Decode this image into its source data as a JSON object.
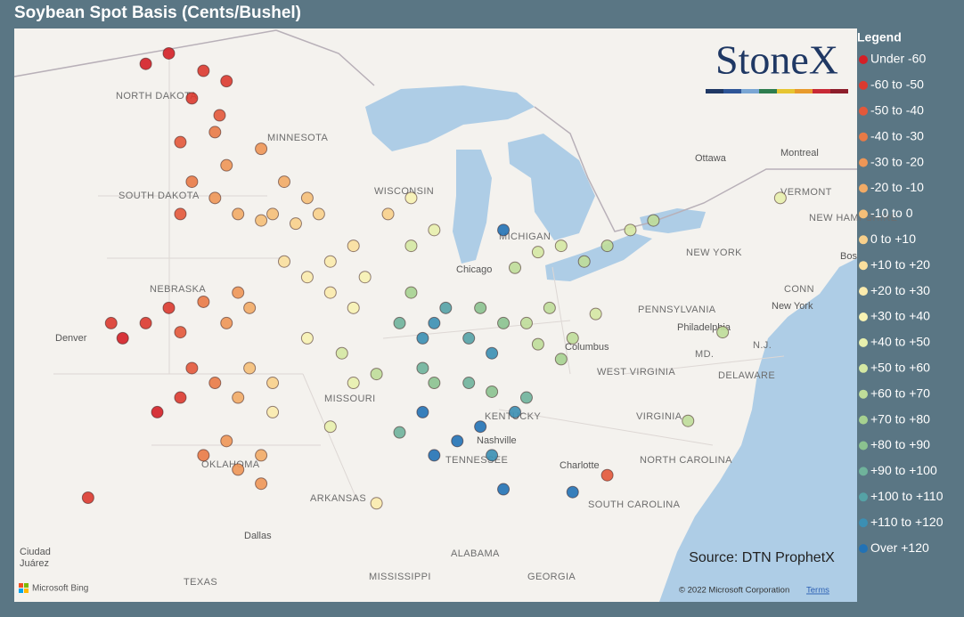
{
  "header": {
    "title": "Soybean Spot Basis (Cents/Bushel)"
  },
  "legend": {
    "title": "Legend",
    "items": [
      {
        "label": "Under -60",
        "from": null,
        "to": -60,
        "color": "#d41f26"
      },
      {
        "label": "-60 to -50",
        "from": -60,
        "to": -50,
        "color": "#db3a2f"
      },
      {
        "label": "-50 to -40",
        "from": -50,
        "to": -40,
        "color": "#e3583a"
      },
      {
        "label": "-40 to -30",
        "from": -40,
        "to": -30,
        "color": "#e97a46"
      },
      {
        "label": "-30 to -20",
        "from": -30,
        "to": -20,
        "color": "#ee9656"
      },
      {
        "label": "-20 to -10",
        "from": -20,
        "to": -10,
        "color": "#f2ab66"
      },
      {
        "label": "-10 to 0",
        "from": -10,
        "to": 0,
        "color": "#f5bf78"
      },
      {
        "label": "0 to +10",
        "from": 0,
        "to": 10,
        "color": "#f8d08b"
      },
      {
        "label": "+10 to +20",
        "from": 10,
        "to": 20,
        "color": "#fadf9d"
      },
      {
        "label": "+20 to +30",
        "from": 20,
        "to": 30,
        "color": "#fbebad"
      },
      {
        "label": "+30 to +40",
        "from": 30,
        "to": 40,
        "color": "#f7f2b3"
      },
      {
        "label": "+40 to +50",
        "from": 40,
        "to": 50,
        "color": "#e8f0ad"
      },
      {
        "label": "+50 to +60",
        "from": 50,
        "to": 60,
        "color": "#d5e8a3"
      },
      {
        "label": "+60 to +70",
        "from": 60,
        "to": 70,
        "color": "#bfdd99"
      },
      {
        "label": "+70 to +80",
        "from": 70,
        "to": 80,
        "color": "#a6d190"
      },
      {
        "label": "+80 to +90",
        "from": 80,
        "to": 90,
        "color": "#8bc28f"
      },
      {
        "label": "+90 to +100",
        "from": 90,
        "to": 100,
        "color": "#6fb39b"
      },
      {
        "label": "+100 to +110",
        "from": 100,
        "to": 110,
        "color": "#55a2a6"
      },
      {
        "label": "+110 to +120",
        "from": 110,
        "to": 120,
        "color": "#3b8fb3"
      },
      {
        "label": "Over +120",
        "from": 120,
        "to": null,
        "color": "#2272b5"
      }
    ]
  },
  "logo": "StoneX",
  "source": "Source: DTN ProphetX",
  "attribution": {
    "brand": "Microsoft Bing",
    "copyright": "© 2022 Microsoft Corporation",
    "terms": "Terms"
  },
  "map_labels": [
    "NORTH DAKOTA",
    "MINNESOTA",
    "SOUTH DAKOTA",
    "WISCONSIN",
    "MICHIGAN",
    "NEBRASKA",
    "Denver",
    "Chicago",
    "MISSOURI",
    "KENTUCKY",
    "TENNESSEE",
    "Nashville",
    "OKLAHOMA",
    "ARKANSAS",
    "Dallas",
    "TEXAS",
    "ALABAMA",
    "MISSISSIPPI",
    "GEORGIA",
    "SOUTH CAROLINA",
    "NORTH CAROLINA",
    "Charlotte",
    "VIRGINIA",
    "WEST VIRGINIA",
    "Columbus",
    "PENNSYLVANIA",
    "NEW YORK",
    "Philadelphia",
    "New York",
    "MD.",
    "DELAWARE",
    "N.J.",
    "CONN",
    "Bos",
    "NEW HAMPSHIRE",
    "VERMONT",
    "Montreal",
    "Ottawa",
    "Ciudad",
    "Juárez"
  ],
  "points": [
    {
      "lon": -101,
      "lat": 48.5,
      "basis": -65
    },
    {
      "lon": -100,
      "lat": 48.8,
      "basis": -62
    },
    {
      "lon": -98.5,
      "lat": 48.3,
      "basis": -58
    },
    {
      "lon": -97.5,
      "lat": 48,
      "basis": -55
    },
    {
      "lon": -99,
      "lat": 47.5,
      "basis": -52
    },
    {
      "lon": -97.8,
      "lat": 47,
      "basis": -45
    },
    {
      "lon": -98,
      "lat": 46.5,
      "basis": -40
    },
    {
      "lon": -99.5,
      "lat": 46.2,
      "basis": -48
    },
    {
      "lon": -99,
      "lat": 45,
      "basis": -35
    },
    {
      "lon": -98,
      "lat": 44.5,
      "basis": -30
    },
    {
      "lon": -97,
      "lat": 44,
      "basis": -20
    },
    {
      "lon": -99.5,
      "lat": 44,
      "basis": -45
    },
    {
      "lon": -97.5,
      "lat": 45.5,
      "basis": -25
    },
    {
      "lon": -96,
      "lat": 46,
      "basis": -22
    },
    {
      "lon": -95,
      "lat": 45,
      "basis": -15
    },
    {
      "lon": -94,
      "lat": 44.5,
      "basis": -10
    },
    {
      "lon": -95.5,
      "lat": 44,
      "basis": -5
    },
    {
      "lon": -93.5,
      "lat": 44,
      "basis": 0
    },
    {
      "lon": -94.5,
      "lat": 43.7,
      "basis": 5
    },
    {
      "lon": -96,
      "lat": 43.8,
      "basis": -8
    },
    {
      "lon": -95,
      "lat": 42.5,
      "basis": 12
    },
    {
      "lon": -94,
      "lat": 42,
      "basis": 22
    },
    {
      "lon": -93,
      "lat": 42.5,
      "basis": 25
    },
    {
      "lon": -92,
      "lat": 43,
      "basis": 15
    },
    {
      "lon": -91.5,
      "lat": 42,
      "basis": 35
    },
    {
      "lon": -93,
      "lat": 41.5,
      "basis": 28
    },
    {
      "lon": -92,
      "lat": 41,
      "basis": 38
    },
    {
      "lon": -90.5,
      "lat": 44,
      "basis": 5
    },
    {
      "lon": -89.5,
      "lat": 44.5,
      "basis": 30
    },
    {
      "lon": -88.5,
      "lat": 43.5,
      "basis": 45
    },
    {
      "lon": -89.5,
      "lat": 43,
      "basis": 55
    },
    {
      "lon": -100,
      "lat": 41,
      "basis": -55
    },
    {
      "lon": -98.5,
      "lat": 41.2,
      "basis": -35
    },
    {
      "lon": -97.5,
      "lat": 40.5,
      "basis": -30
    },
    {
      "lon": -97,
      "lat": 41.5,
      "basis": -25
    },
    {
      "lon": -96.5,
      "lat": 41,
      "basis": -15
    },
    {
      "lon": -101,
      "lat": 40.5,
      "basis": -58
    },
    {
      "lon": -99.5,
      "lat": 40.2,
      "basis": -42
    },
    {
      "lon": -102,
      "lat": 40,
      "basis": -65
    },
    {
      "lon": -102.5,
      "lat": 40.5,
      "basis": -55
    },
    {
      "lon": -99,
      "lat": 39,
      "basis": -45
    },
    {
      "lon": -98,
      "lat": 38.5,
      "basis": -35
    },
    {
      "lon": -97,
      "lat": 38,
      "basis": -20
    },
    {
      "lon": -96.5,
      "lat": 39,
      "basis": -10
    },
    {
      "lon": -95.5,
      "lat": 38.5,
      "basis": 5
    },
    {
      "lon": -95.5,
      "lat": 37.5,
      "basis": 20
    },
    {
      "lon": -99.5,
      "lat": 38,
      "basis": -55
    },
    {
      "lon": -100.5,
      "lat": 37.5,
      "basis": -62
    },
    {
      "lon": -97.5,
      "lat": 36.5,
      "basis": -25
    },
    {
      "lon": -97,
      "lat": 35.5,
      "basis": -30
    },
    {
      "lon": -96,
      "lat": 36,
      "basis": -15
    },
    {
      "lon": -98.5,
      "lat": 36,
      "basis": -40
    },
    {
      "lon": -96,
      "lat": 35,
      "basis": -30
    },
    {
      "lon": -94,
      "lat": 40,
      "basis": 30
    },
    {
      "lon": -92.5,
      "lat": 39.5,
      "basis": 55
    },
    {
      "lon": -92,
      "lat": 38.5,
      "basis": 40
    },
    {
      "lon": -91,
      "lat": 38.8,
      "basis": 60
    },
    {
      "lon": -93,
      "lat": 37,
      "basis": 45
    },
    {
      "lon": -90,
      "lat": 36.8,
      "basis": 90
    },
    {
      "lon": -89.5,
      "lat": 41.5,
      "basis": 70
    },
    {
      "lon": -88.5,
      "lat": 40.5,
      "basis": 115
    },
    {
      "lon": -89,
      "lat": 40,
      "basis": 110
    },
    {
      "lon": -88,
      "lat": 41,
      "basis": 105
    },
    {
      "lon": -90,
      "lat": 40.5,
      "basis": 90
    },
    {
      "lon": -89,
      "lat": 39,
      "basis": 95
    },
    {
      "lon": -88.5,
      "lat": 38.5,
      "basis": 85
    },
    {
      "lon": -89,
      "lat": 37.5,
      "basis": 125
    },
    {
      "lon": -87,
      "lat": 40,
      "basis": 100
    },
    {
      "lon": -86,
      "lat": 39.5,
      "basis": 110
    },
    {
      "lon": -86.5,
      "lat": 41,
      "basis": 85
    },
    {
      "lon": -85.5,
      "lat": 40.5,
      "basis": 80
    },
    {
      "lon": -87,
      "lat": 38.5,
      "basis": 95
    },
    {
      "lon": -86,
      "lat": 38.2,
      "basis": 80
    },
    {
      "lon": -84.5,
      "lat": 40.5,
      "basis": 65
    },
    {
      "lon": -83.5,
      "lat": 41,
      "basis": 60
    },
    {
      "lon": -82.5,
      "lat": 40,
      "basis": 65
    },
    {
      "lon": -83,
      "lat": 39.3,
      "basis": 70
    },
    {
      "lon": -84,
      "lat": 39.8,
      "basis": 68
    },
    {
      "lon": -81.5,
      "lat": 40.8,
      "basis": 55
    },
    {
      "lon": -85,
      "lat": 42.3,
      "basis": 60
    },
    {
      "lon": -84,
      "lat": 42.8,
      "basis": 55
    },
    {
      "lon": -83,
      "lat": 43,
      "basis": 50
    },
    {
      "lon": -85.5,
      "lat": 43.5,
      "basis": 120
    },
    {
      "lon": -82,
      "lat": 42.5,
      "basis": 60
    },
    {
      "lon": -81,
      "lat": 43,
      "basis": 60
    },
    {
      "lon": -80,
      "lat": 43.5,
      "basis": 55
    },
    {
      "lon": -79,
      "lat": 43.8,
      "basis": 60
    },
    {
      "lon": -86.5,
      "lat": 37,
      "basis": 130
    },
    {
      "lon": -87.5,
      "lat": 36.5,
      "basis": 120
    },
    {
      "lon": -88.5,
      "lat": 36,
      "basis": 125
    },
    {
      "lon": -86,
      "lat": 36,
      "basis": 110
    },
    {
      "lon": -84.5,
      "lat": 38,
      "basis": 90
    },
    {
      "lon": -85,
      "lat": 37.5,
      "basis": 115
    },
    {
      "lon": -81,
      "lat": 35.3,
      "basis": -50
    },
    {
      "lon": -91,
      "lat": 34.3,
      "basis": 20
    },
    {
      "lon": -76,
      "lat": 40.2,
      "basis": 65
    },
    {
      "lon": -73.5,
      "lat": 44.5,
      "basis": 40
    },
    {
      "lon": -103.5,
      "lat": 34.5,
      "basis": -60
    },
    {
      "lon": -82.5,
      "lat": 34.7,
      "basis": 125
    },
    {
      "lon": -85.5,
      "lat": 34.8,
      "basis": 120
    },
    {
      "lon": -77.5,
      "lat": 37.2,
      "basis": 65
    }
  ]
}
